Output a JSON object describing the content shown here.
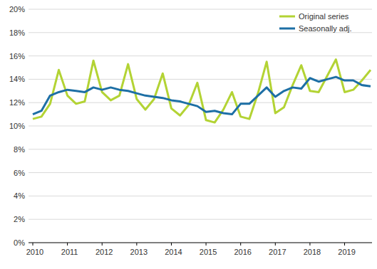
{
  "chart_data": {
    "type": "line",
    "categories": [
      "2010",
      null,
      null,
      null,
      "2011",
      null,
      null,
      null,
      "2012",
      null,
      null,
      null,
      "2013",
      null,
      null,
      null,
      "2014",
      null,
      null,
      null,
      "2015",
      null,
      null,
      null,
      "2016",
      null,
      null,
      null,
      "2017",
      null,
      null,
      null,
      "2018",
      null,
      null,
      null,
      "2019",
      null,
      null,
      null
    ],
    "series": [
      {
        "name": "Original series",
        "color": "#b3d334",
        "values": [
          10.6,
          10.8,
          11.9,
          14.8,
          12.6,
          11.9,
          12.1,
          15.6,
          12.9,
          12.2,
          12.6,
          15.3,
          12.3,
          11.4,
          12.3,
          14.5,
          11.5,
          10.9,
          11.8,
          13.7,
          10.5,
          10.3,
          11.4,
          12.9,
          10.8,
          10.6,
          12.8,
          15.5,
          11.1,
          11.6,
          13.5,
          15.2,
          13.0,
          12.9,
          14.3,
          15.7,
          12.9,
          13.1,
          13.9,
          14.8
        ]
      },
      {
        "name": "Seasonally adj.",
        "color": "#1d6fa5",
        "values": [
          11.0,
          11.3,
          12.6,
          12.9,
          13.1,
          13.0,
          12.9,
          13.3,
          13.1,
          13.3,
          13.1,
          13.0,
          12.8,
          12.6,
          12.5,
          12.4,
          12.2,
          12.1,
          11.9,
          11.7,
          11.2,
          11.3,
          11.1,
          11.0,
          11.9,
          11.9,
          12.6,
          13.3,
          12.5,
          13.0,
          13.3,
          13.2,
          14.1,
          13.8,
          14.0,
          14.2,
          13.9,
          13.9,
          13.5,
          13.4
        ]
      }
    ],
    "ylim": [
      0,
      20
    ],
    "yticks": [
      {
        "value": 0,
        "label": "0%"
      },
      {
        "value": 2,
        "label": "2%"
      },
      {
        "value": 4,
        "label": "4%"
      },
      {
        "value": 6,
        "label": "6%"
      },
      {
        "value": 8,
        "label": "8%"
      },
      {
        "value": 10,
        "label": "10%"
      },
      {
        "value": 12,
        "label": "12%"
      },
      {
        "value": 14,
        "label": "14%"
      },
      {
        "value": 16,
        "label": "16%"
      },
      {
        "value": 18,
        "label": "18%"
      },
      {
        "value": 20,
        "label": "20%"
      }
    ],
    "grid": true,
    "legend": "top-right"
  }
}
